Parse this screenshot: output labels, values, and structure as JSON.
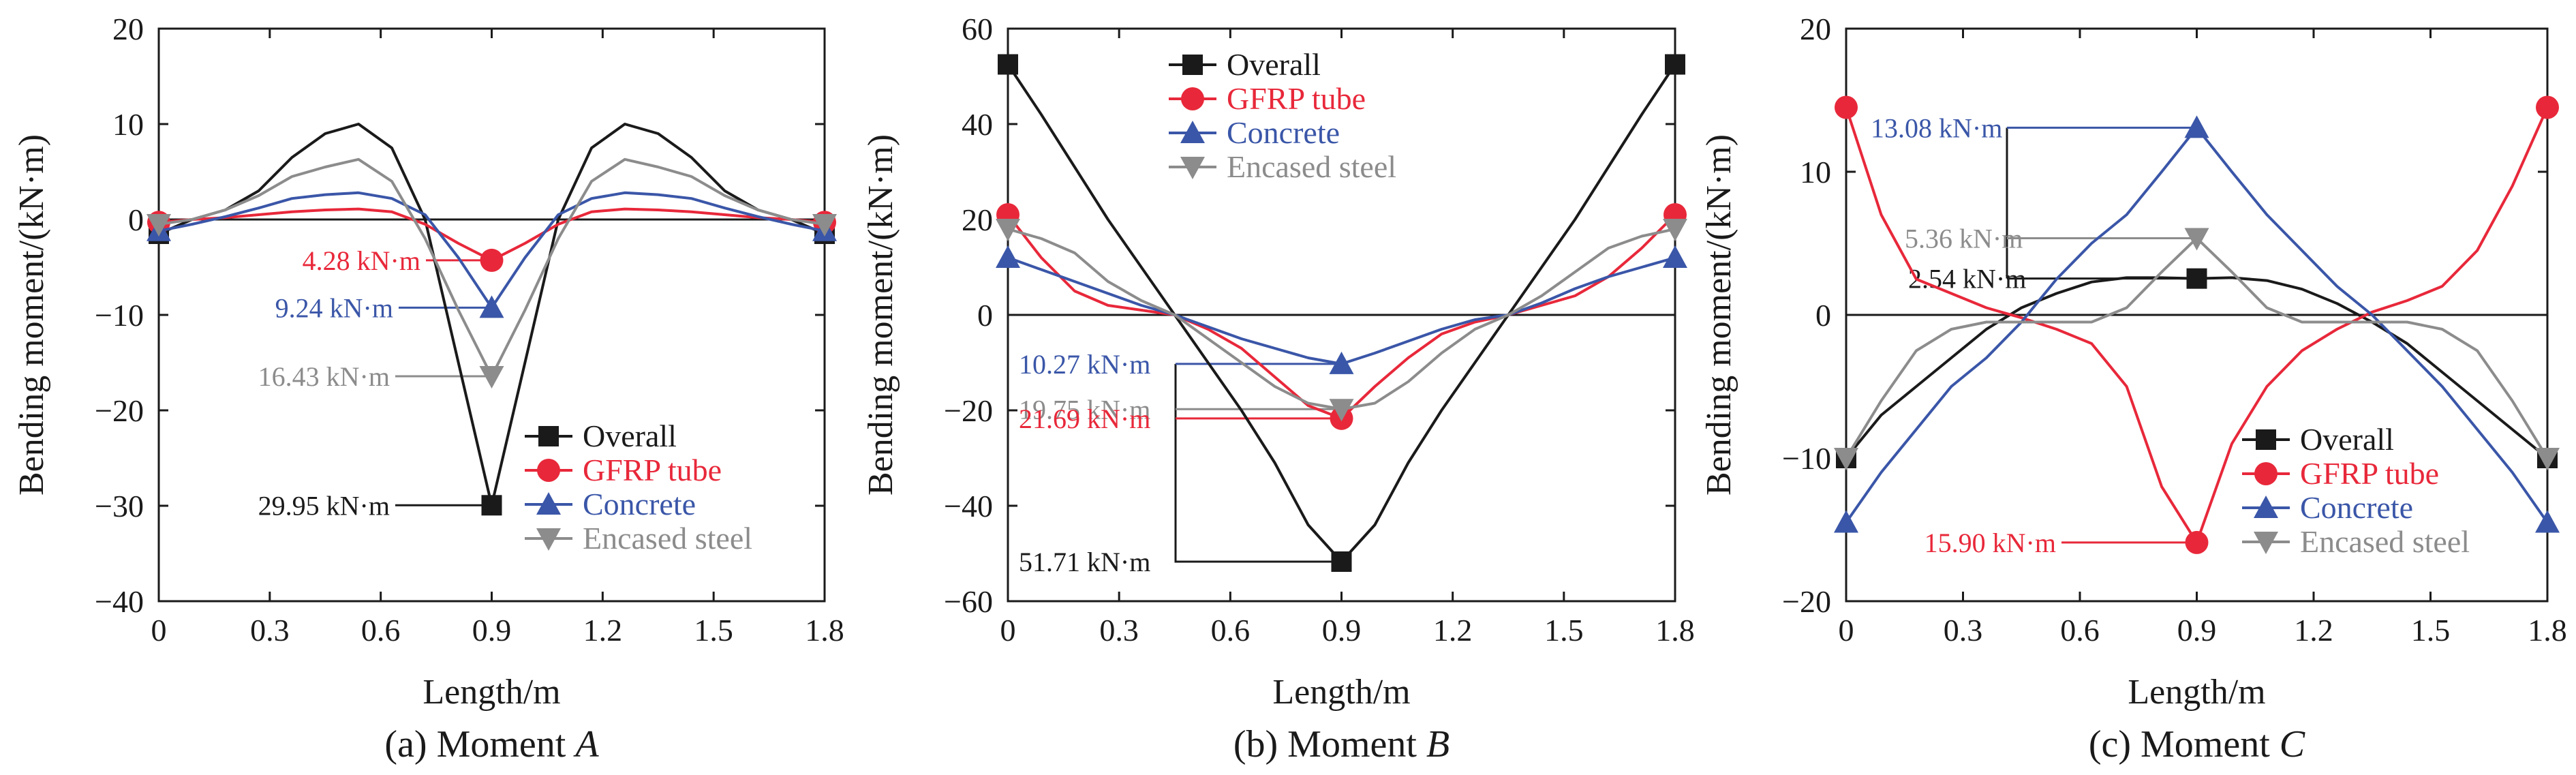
{
  "chart_data": [
    {
      "type": "line",
      "caption": "(a) Moment ",
      "caption_var": "A",
      "xlabel": "Length/m",
      "ylabel": "Bending moment/(kN·m)",
      "xlim": [
        0,
        1.8
      ],
      "ylim": [
        -40,
        20
      ],
      "xticks": [
        "0",
        "0.3",
        "0.6",
        "0.9",
        "1.2",
        "1.5",
        "1.8"
      ],
      "yticks": [
        "20",
        "10",
        "0",
        "−10",
        "−20",
        "−30",
        "−40"
      ],
      "legend_position": "bottom-right",
      "series": [
        {
          "name": "Overall",
          "color": "#1a1a1a",
          "marker": "square",
          "x": [
            0,
            0.09,
            0.18,
            0.27,
            0.36,
            0.45,
            0.54,
            0.63,
            0.72,
            0.81,
            0.9,
            0.99,
            1.08,
            1.17,
            1.26,
            1.35,
            1.44,
            1.53,
            1.62,
            1.71,
            1.8
          ],
          "y": [
            -1.5,
            0,
            1,
            3,
            6.5,
            9,
            10,
            7.5,
            0,
            -15,
            -29.95,
            -15,
            0,
            7.5,
            10,
            9,
            6.5,
            3,
            1,
            0,
            -1.5
          ]
        },
        {
          "name": "GFRP tube",
          "color": "#e8283a",
          "marker": "circle",
          "x": [
            0,
            0.09,
            0.18,
            0.27,
            0.36,
            0.45,
            0.54,
            0.63,
            0.72,
            0.81,
            0.9,
            0.99,
            1.08,
            1.17,
            1.26,
            1.35,
            1.44,
            1.53,
            1.62,
            1.71,
            1.8
          ],
          "y": [
            -0.3,
            0,
            0.2,
            0.5,
            0.8,
            1.0,
            1.1,
            0.8,
            -0.5,
            -2.5,
            -4.28,
            -2.5,
            -0.5,
            0.8,
            1.1,
            1.0,
            0.8,
            0.5,
            0.2,
            0,
            -0.3
          ]
        },
        {
          "name": "Concrete",
          "color": "#3a56a8",
          "marker": "triangle-up",
          "x": [
            0,
            0.09,
            0.18,
            0.27,
            0.36,
            0.45,
            0.54,
            0.63,
            0.72,
            0.81,
            0.9,
            0.99,
            1.08,
            1.17,
            1.26,
            1.35,
            1.44,
            1.53,
            1.62,
            1.71,
            1.8
          ],
          "y": [
            -1.2,
            -0.5,
            0.3,
            1.2,
            2.2,
            2.6,
            2.8,
            2.2,
            0.5,
            -4,
            -9.24,
            -4,
            0.5,
            2.2,
            2.8,
            2.6,
            2.2,
            1.2,
            0.3,
            -0.5,
            -1.2
          ]
        },
        {
          "name": "Encased steel",
          "color": "#8c8c8c",
          "marker": "triangle-down",
          "x": [
            0,
            0.09,
            0.18,
            0.27,
            0.36,
            0.45,
            0.54,
            0.63,
            0.72,
            0.81,
            0.9,
            0.99,
            1.08,
            1.17,
            1.26,
            1.35,
            1.44,
            1.53,
            1.62,
            1.71,
            1.8
          ],
          "y": [
            -0.5,
            0,
            1,
            2.5,
            4.5,
            5.5,
            6.3,
            4,
            -2,
            -9.5,
            -16.43,
            -9.5,
            -2,
            4,
            6.3,
            5.5,
            4.5,
            2.5,
            1,
            0,
            -0.5
          ]
        }
      ],
      "annotations": [
        {
          "text": "4.28 kN·m",
          "color": "#e8283a",
          "x": 0.9,
          "y": -4.28
        },
        {
          "text": "9.24 kN·m",
          "color": "#3a56a8",
          "x": 0.9,
          "y": -9.24
        },
        {
          "text": "16.43 kN·m",
          "color": "#8c8c8c",
          "x": 0.9,
          "y": -16.43
        },
        {
          "text": "29.95 kN·m",
          "color": "#1a1a1a",
          "x": 0.9,
          "y": -29.95
        }
      ]
    },
    {
      "type": "line",
      "caption": "(b) Moment ",
      "caption_var": "B",
      "xlabel": "Length/m",
      "ylabel": "Bending moment/(kN·m)",
      "xlim": [
        0,
        1.8
      ],
      "ylim": [
        -60,
        60
      ],
      "xticks": [
        "0",
        "0.3",
        "0.6",
        "0.9",
        "1.2",
        "1.5",
        "1.8"
      ],
      "yticks": [
        "60",
        "40",
        "20",
        "0",
        "−20",
        "−40",
        "−60"
      ],
      "legend_position": "top-center",
      "series": [
        {
          "name": "Overall",
          "color": "#1a1a1a",
          "marker": "square",
          "x": [
            0,
            0.09,
            0.18,
            0.27,
            0.36,
            0.45,
            0.54,
            0.63,
            0.72,
            0.81,
            0.9,
            0.99,
            1.08,
            1.17,
            1.26,
            1.35,
            1.44,
            1.53,
            1.62,
            1.71,
            1.8
          ],
          "y": [
            52.5,
            42,
            31,
            20,
            10,
            0,
            -10,
            -20,
            -31,
            -44,
            -51.71,
            -44,
            -31,
            -20,
            -10,
            0,
            10,
            20,
            31,
            42,
            52.5
          ]
        },
        {
          "name": "GFRP tube",
          "color": "#e8283a",
          "marker": "circle",
          "x": [
            0,
            0.09,
            0.18,
            0.27,
            0.36,
            0.45,
            0.54,
            0.63,
            0.72,
            0.81,
            0.9,
            0.99,
            1.08,
            1.17,
            1.26,
            1.35,
            1.44,
            1.53,
            1.62,
            1.71,
            1.8
          ],
          "y": [
            21,
            12,
            5,
            2,
            1,
            0,
            -3,
            -7,
            -13,
            -19,
            -21.69,
            -15,
            -9,
            -4,
            -1.5,
            0,
            2,
            4,
            8,
            14,
            21
          ]
        },
        {
          "name": "Concrete",
          "color": "#3a56a8",
          "marker": "triangle-up",
          "x": [
            0,
            0.09,
            0.18,
            0.27,
            0.36,
            0.45,
            0.54,
            0.63,
            0.72,
            0.81,
            0.9,
            0.99,
            1.08,
            1.17,
            1.26,
            1.35,
            1.44,
            1.53,
            1.62,
            1.71,
            1.8
          ],
          "y": [
            12,
            9.5,
            7,
            4.5,
            2,
            0,
            -2.5,
            -5,
            -7,
            -9,
            -10.27,
            -8,
            -5.5,
            -3,
            -1,
            0,
            2.5,
            5.5,
            8,
            10,
            12
          ]
        },
        {
          "name": "Encased steel",
          "color": "#8c8c8c",
          "marker": "triangle-down",
          "x": [
            0,
            0.09,
            0.18,
            0.27,
            0.36,
            0.45,
            0.54,
            0.63,
            0.72,
            0.81,
            0.9,
            0.99,
            1.08,
            1.17,
            1.26,
            1.35,
            1.44,
            1.53,
            1.62,
            1.71,
            1.8
          ],
          "y": [
            18,
            16,
            13,
            7,
            3,
            0,
            -5,
            -10,
            -15,
            -18.5,
            -19.75,
            -18.5,
            -14,
            -8,
            -3,
            0,
            4,
            9,
            14,
            16.5,
            18
          ]
        }
      ],
      "annotations": [
        {
          "text": "10.27 kN·m",
          "color": "#3a56a8",
          "x": 0.9,
          "y": -10.27
        },
        {
          "text": "19.75 kN·m",
          "color": "#8c8c8c",
          "x": 0.9,
          "y": -19.75
        },
        {
          "text": "21.69 kN·m",
          "color": "#e8283a",
          "x": 0.9,
          "y": -21.69
        },
        {
          "text": "51.71 kN·m",
          "color": "#1a1a1a",
          "x": 0.9,
          "y": -51.71
        }
      ]
    },
    {
      "type": "line",
      "caption": "(c) Moment ",
      "caption_var": "C",
      "xlabel": "Length/m",
      "ylabel": "Bending moment/(kN·m)",
      "xlim": [
        0,
        1.8
      ],
      "ylim": [
        -20,
        20
      ],
      "xticks": [
        "0",
        "0.3",
        "0.6",
        "0.9",
        "1.2",
        "1.5",
        "1.8"
      ],
      "yticks": [
        "20",
        "10",
        "0",
        "−10",
        "−20"
      ],
      "legend_position": "bottom-right",
      "series": [
        {
          "name": "Overall",
          "color": "#1a1a1a",
          "marker": "square",
          "x": [
            0,
            0.09,
            0.18,
            0.27,
            0.36,
            0.45,
            0.54,
            0.63,
            0.72,
            0.81,
            0.9,
            0.99,
            1.08,
            1.17,
            1.26,
            1.35,
            1.44,
            1.53,
            1.62,
            1.71,
            1.8
          ],
          "y": [
            -10,
            -7,
            -5,
            -3,
            -1,
            0.5,
            1.5,
            2.3,
            2.6,
            2.6,
            2.54,
            2.6,
            2.4,
            1.8,
            0.8,
            -0.5,
            -2,
            -4,
            -6,
            -8,
            -10
          ]
        },
        {
          "name": "GFRP tube",
          "color": "#e8283a",
          "marker": "circle",
          "x": [
            0,
            0.09,
            0.18,
            0.27,
            0.36,
            0.45,
            0.54,
            0.63,
            0.72,
            0.81,
            0.9,
            0.99,
            1.08,
            1.17,
            1.26,
            1.35,
            1.44,
            1.53,
            1.62,
            1.71,
            1.8
          ],
          "y": [
            14.5,
            7,
            2.5,
            1.5,
            0.5,
            -0.2,
            -1,
            -2,
            -5,
            -12,
            -15.9,
            -9,
            -5,
            -2.5,
            -1,
            0.2,
            1,
            2,
            4.5,
            9,
            14.5
          ]
        },
        {
          "name": "Concrete",
          "color": "#3a56a8",
          "marker": "triangle-up",
          "x": [
            0,
            0.09,
            0.18,
            0.27,
            0.36,
            0.45,
            0.54,
            0.63,
            0.72,
            0.81,
            0.9,
            0.99,
            1.08,
            1.17,
            1.26,
            1.35,
            1.44,
            1.53,
            1.62,
            1.71,
            1.8
          ],
          "y": [
            -14.5,
            -11,
            -8,
            -5,
            -3,
            -0.5,
            2.5,
            5,
            7,
            10,
            13.08,
            10,
            7,
            4.5,
            2,
            0,
            -2.5,
            -5,
            -8,
            -11,
            -14.5
          ]
        },
        {
          "name": "Encased steel",
          "color": "#8c8c8c",
          "marker": "triangle-down",
          "x": [
            0,
            0.09,
            0.18,
            0.27,
            0.36,
            0.45,
            0.54,
            0.63,
            0.72,
            0.81,
            0.9,
            0.99,
            1.08,
            1.17,
            1.26,
            1.35,
            1.44,
            1.53,
            1.62,
            1.71,
            1.8
          ],
          "y": [
            -10,
            -6,
            -2.5,
            -1,
            -0.5,
            -0.5,
            -0.5,
            -0.5,
            0.5,
            3,
            5.36,
            3,
            0.5,
            -0.5,
            -0.5,
            -0.5,
            -0.5,
            -1,
            -2.5,
            -6,
            -10
          ]
        }
      ],
      "annotations": [
        {
          "text": "13.08 kN·m",
          "color": "#3a56a8",
          "x": 0.9,
          "y": 13.08
        },
        {
          "text": "5.36 kN·m",
          "color": "#8c8c8c",
          "x": 0.9,
          "y": 5.36
        },
        {
          "text": "2.54 kN·m",
          "color": "#1a1a1a",
          "x": 0.9,
          "y": 2.54
        },
        {
          "text": "15.90 kN·m",
          "color": "#e8283a",
          "x": 0.9,
          "y": -15.9
        }
      ]
    }
  ]
}
